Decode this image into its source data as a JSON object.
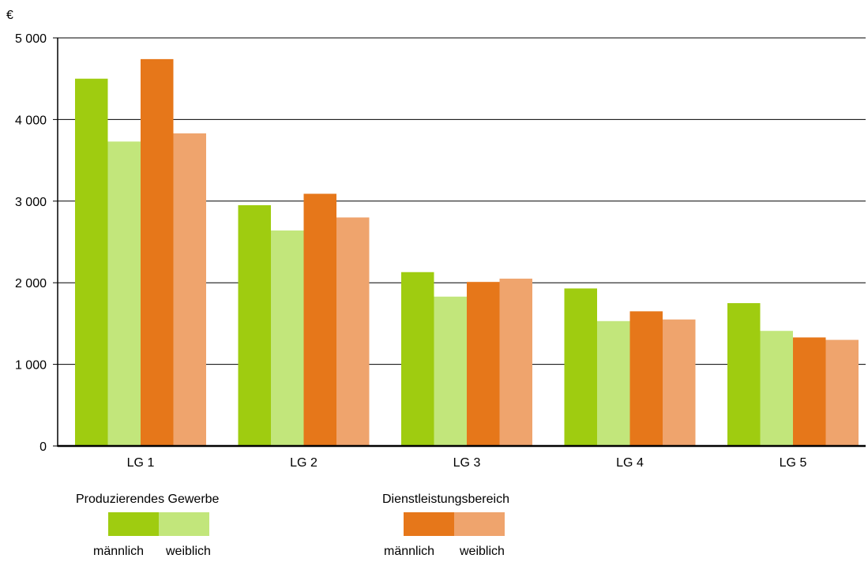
{
  "chart_data": {
    "type": "bar",
    "unit_label": "€",
    "categories": [
      "LG 1",
      "LG 2",
      "LG 3",
      "LG 4",
      "LG 5"
    ],
    "series": [
      {
        "group": "Produzierendes Gewerbe",
        "name": "männlich",
        "color": "#9fcc10",
        "values": [
          4500,
          2950,
          2130,
          1930,
          1750
        ]
      },
      {
        "group": "Produzierendes Gewerbe",
        "name": "weiblich",
        "color": "#c2e67b",
        "values": [
          3730,
          2640,
          1830,
          1530,
          1410
        ]
      },
      {
        "group": "Dienstleistungsbereich",
        "name": "männlich",
        "color": "#e6771a",
        "values": [
          4740,
          3090,
          2010,
          1650,
          1330
        ]
      },
      {
        "group": "Dienstleistungsbereich",
        "name": "weiblich",
        "color": "#efa46d",
        "values": [
          3830,
          2800,
          2050,
          1550,
          1300
        ]
      }
    ],
    "yticks": [
      0,
      1000,
      2000,
      3000,
      4000,
      5000
    ],
    "ytick_labels": [
      "0",
      "1 000",
      "2 000",
      "3 000",
      "4 000",
      "5 000"
    ],
    "ylim": [
      0,
      5000
    ],
    "grid": true,
    "legend_position": "bottom"
  },
  "legend": {
    "groups": [
      {
        "title": "Produzierendes Gewerbe",
        "male_label": "männlich",
        "female_label": "weiblich",
        "male_color": "#9fcc10",
        "female_color": "#c2e67b"
      },
      {
        "title": "Dienstleistungsbereich",
        "male_label": "männlich",
        "female_label": "weiblich",
        "male_color": "#e6771a",
        "female_color": "#efa46d"
      }
    ]
  }
}
